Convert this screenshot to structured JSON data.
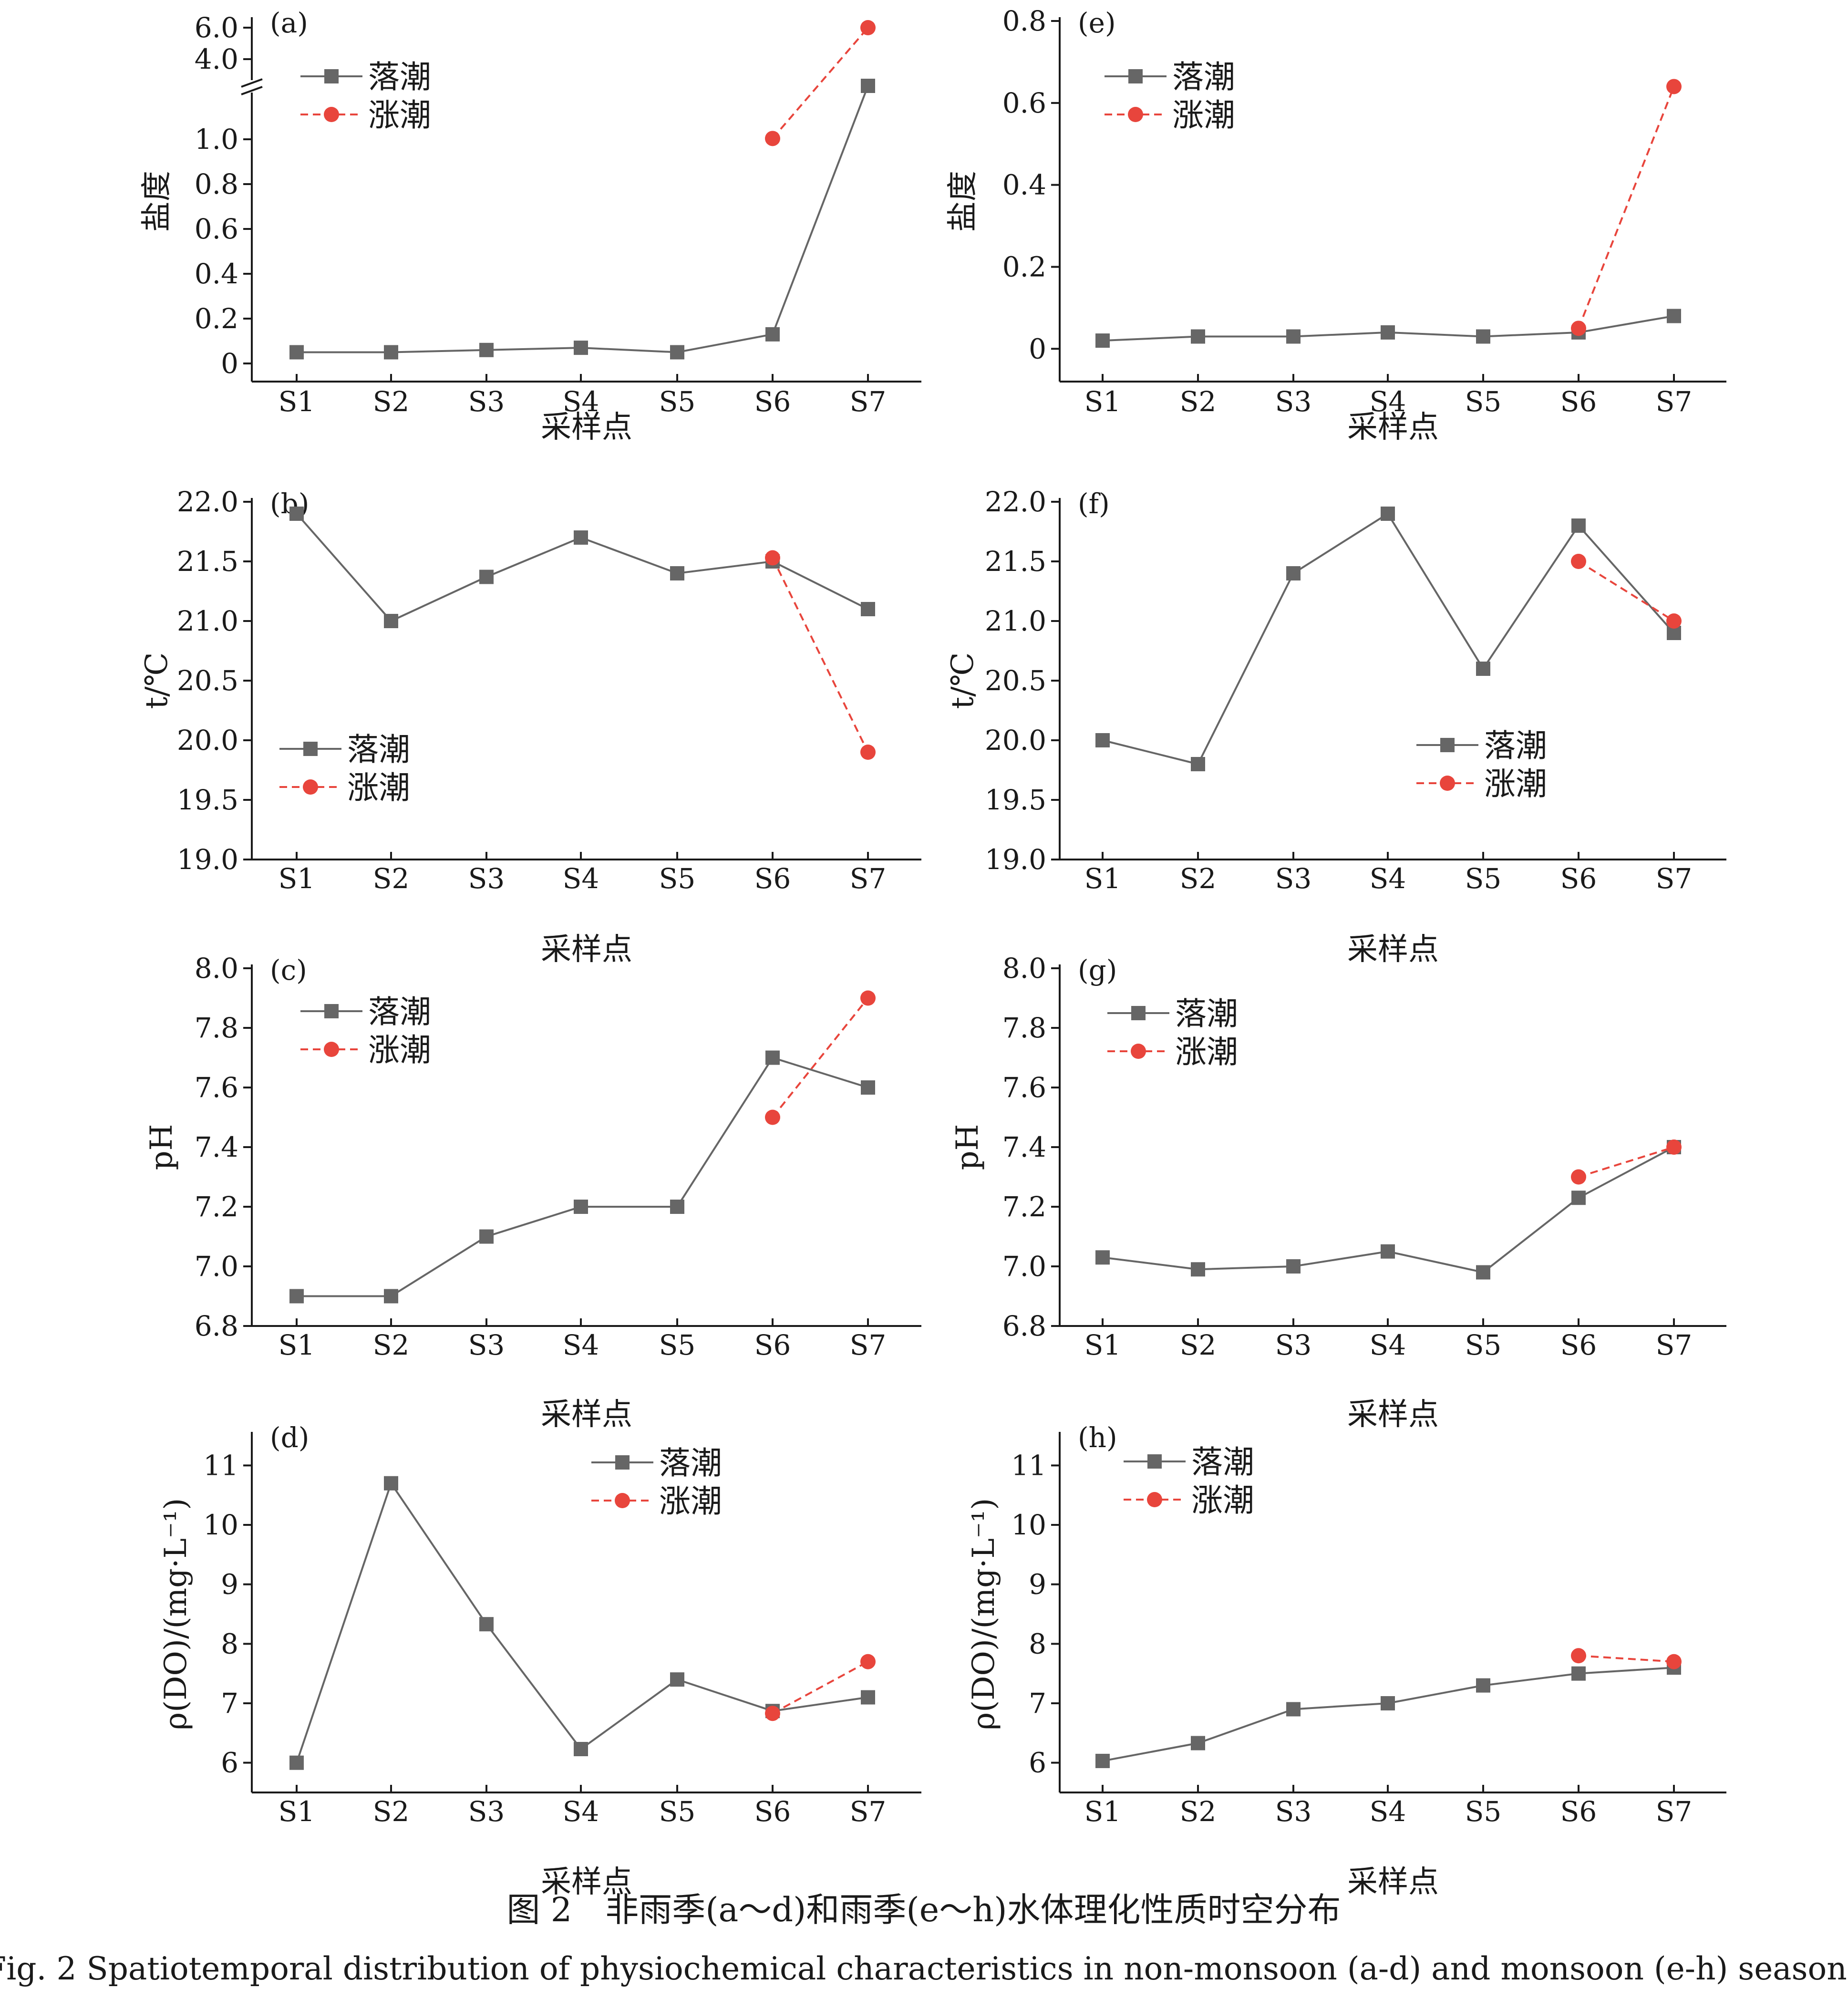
{
  "caption": {
    "cn": "图 2　非雨季(a～d)和雨季(e～h)水体理化性质时空分布",
    "en": "Fig. 2  Spatiotemporal distribution of physiochemical characteristics in non-monsoon (a-d) and monsoon (e-h) seasons"
  },
  "legend": {
    "ebb": "落潮",
    "flood": "涨潮"
  },
  "colors": {
    "ebb": "#666666",
    "flood": "#e8453c",
    "axis": "#1a1a1a"
  },
  "chart_data": [
    {
      "panel": "(a)",
      "type": "line",
      "categories": [
        "S1",
        "S2",
        "S3",
        "S4",
        "S5",
        "S6",
        "S7"
      ],
      "xlabel": "采样点",
      "ylabel": "盐度",
      "ylim": [
        0,
        6.0
      ],
      "axis_break": [
        1.0,
        4.0
      ],
      "y_ticks": [
        "0",
        "0.2",
        "0.4",
        "0.6",
        "0.8",
        "1.0",
        "4.0",
        "6.0"
      ],
      "legend_position": "top-left",
      "series": [
        {
          "name": "落潮",
          "style": "solid-square",
          "values": [
            0.05,
            0.05,
            0.06,
            0.07,
            0.05,
            0.13,
            3.0
          ]
        },
        {
          "name": "涨潮",
          "style": "dashed-circle",
          "values": [
            null,
            null,
            null,
            null,
            null,
            1.03,
            6.0
          ]
        }
      ]
    },
    {
      "panel": "(e)",
      "type": "line",
      "categories": [
        "S1",
        "S2",
        "S3",
        "S4",
        "S5",
        "S6",
        "S7"
      ],
      "xlabel": "采样点",
      "ylabel": "盐度",
      "ylim": [
        -0.08,
        0.8
      ],
      "y_ticks": [
        "0",
        "0.2",
        "0.4",
        "0.6",
        "0.8"
      ],
      "legend_position": "top-left",
      "series": [
        {
          "name": "落潮",
          "style": "solid-square",
          "values": [
            0.02,
            0.03,
            0.03,
            0.04,
            0.03,
            0.04,
            0.08
          ]
        },
        {
          "name": "涨潮",
          "style": "dashed-circle",
          "values": [
            null,
            null,
            null,
            null,
            null,
            0.05,
            0.64
          ]
        }
      ]
    },
    {
      "panel": "(b)",
      "type": "line",
      "categories": [
        "S1",
        "S2",
        "S3",
        "S4",
        "S5",
        "S6",
        "S7"
      ],
      "xlabel": "采样点",
      "ylabel": "t/℃",
      "ylim": [
        19.0,
        22.0
      ],
      "y_ticks": [
        "19.0",
        "19.5",
        "20.0",
        "20.5",
        "21.0",
        "21.5",
        "22.0"
      ],
      "legend_position": "bottom-left",
      "series": [
        {
          "name": "落潮",
          "style": "solid-square",
          "values": [
            21.9,
            21.0,
            21.37,
            21.7,
            21.4,
            21.5,
            21.1
          ]
        },
        {
          "name": "涨潮",
          "style": "dashed-circle",
          "values": [
            null,
            null,
            null,
            null,
            null,
            21.53,
            19.9
          ]
        }
      ]
    },
    {
      "panel": "(f)",
      "type": "line",
      "categories": [
        "S1",
        "S2",
        "S3",
        "S4",
        "S5",
        "S6",
        "S7"
      ],
      "xlabel": "采样点",
      "ylabel": "t/℃",
      "ylim": [
        19.0,
        22.0
      ],
      "y_ticks": [
        "19.0",
        "19.5",
        "20.0",
        "20.5",
        "21.0",
        "21.5",
        "22.0"
      ],
      "legend_position": "bottom-right",
      "series": [
        {
          "name": "落潮",
          "style": "solid-square",
          "values": [
            20.0,
            19.8,
            21.4,
            21.9,
            20.6,
            21.8,
            20.9
          ]
        },
        {
          "name": "涨潮",
          "style": "dashed-circle",
          "values": [
            null,
            null,
            null,
            null,
            null,
            21.5,
            21.0
          ]
        }
      ]
    },
    {
      "panel": "(c)",
      "type": "line",
      "categories": [
        "S1",
        "S2",
        "S3",
        "S4",
        "S5",
        "S6",
        "S7"
      ],
      "xlabel": "采样点",
      "ylabel": "pH",
      "ylim": [
        6.8,
        8.0
      ],
      "y_ticks": [
        "6.8",
        "7.0",
        "7.2",
        "7.4",
        "7.6",
        "7.8",
        "8.0"
      ],
      "legend_position": "top-left",
      "series": [
        {
          "name": "落潮",
          "style": "solid-square",
          "values": [
            6.9,
            6.9,
            7.1,
            7.2,
            7.2,
            7.7,
            7.6
          ]
        },
        {
          "name": "涨潮",
          "style": "dashed-circle",
          "values": [
            null,
            null,
            null,
            null,
            null,
            7.5,
            7.9
          ]
        }
      ]
    },
    {
      "panel": "(g)",
      "type": "line",
      "categories": [
        "S1",
        "S2",
        "S3",
        "S4",
        "S5",
        "S6",
        "S7"
      ],
      "xlabel": "采样点",
      "ylabel": "pH",
      "ylim": [
        6.8,
        8.0
      ],
      "y_ticks": [
        "6.8",
        "7.0",
        "7.2",
        "7.4",
        "7.6",
        "7.8",
        "8.0"
      ],
      "legend_position": "top-left",
      "series": [
        {
          "name": "落潮",
          "style": "solid-square",
          "values": [
            7.03,
            6.99,
            7.0,
            7.05,
            6.98,
            7.23,
            7.4
          ]
        },
        {
          "name": "涨潮",
          "style": "dashed-circle",
          "values": [
            null,
            null,
            null,
            null,
            null,
            7.3,
            7.4
          ]
        }
      ]
    },
    {
      "panel": "(d)",
      "type": "line",
      "categories": [
        "S1",
        "S2",
        "S3",
        "S4",
        "S5",
        "S6",
        "S7"
      ],
      "xlabel": "采样点",
      "ylabel": "ρ(DO)/(mg·L⁻¹)",
      "ylim": [
        5.5,
        11.5
      ],
      "y_ticks": [
        "6",
        "7",
        "8",
        "9",
        "10",
        "11"
      ],
      "legend_position": "top-right",
      "series": [
        {
          "name": "落潮",
          "style": "solid-square",
          "values": [
            6.0,
            10.7,
            8.33,
            6.23,
            7.4,
            6.87,
            7.1
          ]
        },
        {
          "name": "涨潮",
          "style": "dashed-circle",
          "values": [
            null,
            null,
            null,
            null,
            null,
            6.83,
            7.7
          ]
        }
      ]
    },
    {
      "panel": "(h)",
      "type": "line",
      "categories": [
        "S1",
        "S2",
        "S3",
        "S4",
        "S5",
        "S6",
        "S7"
      ],
      "xlabel": "采样点",
      "ylabel": "ρ(DO)/(mg·L⁻¹)",
      "ylim": [
        5.5,
        11.5
      ],
      "y_ticks": [
        "6",
        "7",
        "8",
        "9",
        "10",
        "11"
      ],
      "legend_position": "top-left",
      "series": [
        {
          "name": "落潮",
          "style": "solid-square",
          "values": [
            6.03,
            6.33,
            6.9,
            7.0,
            7.3,
            7.5,
            7.6
          ]
        },
        {
          "name": "涨潮",
          "style": "dashed-circle",
          "values": [
            null,
            null,
            null,
            null,
            null,
            7.8,
            7.7
          ]
        }
      ]
    }
  ]
}
